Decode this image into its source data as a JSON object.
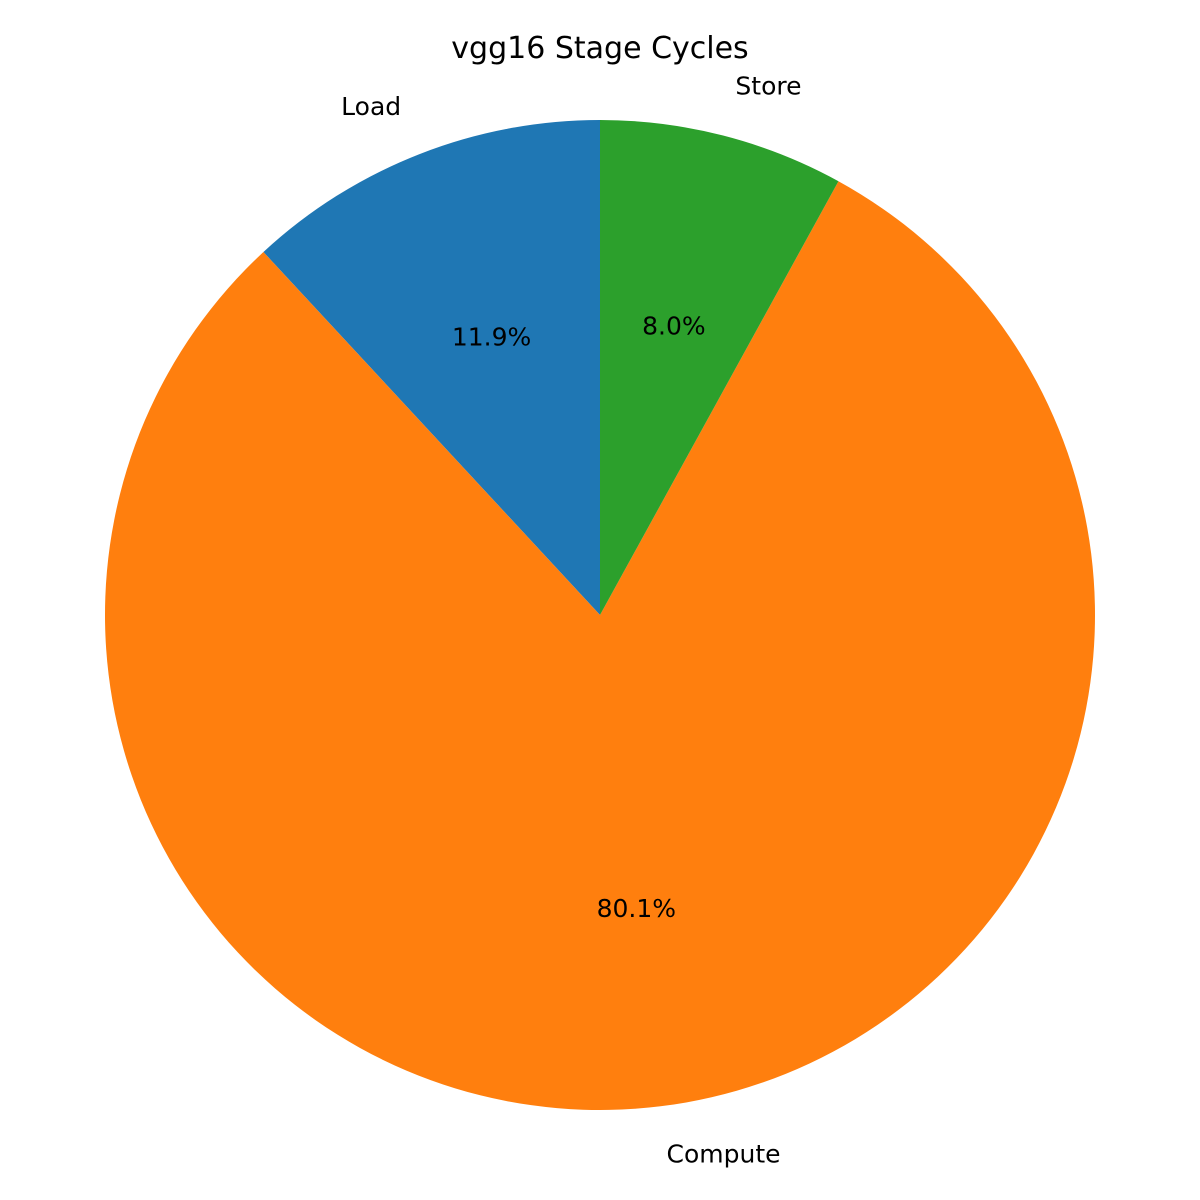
{
  "chart_data": {
    "type": "pie",
    "title": "vgg16 Stage Cycles",
    "start_angle_deg": 90,
    "direction": "counterclockwise",
    "slices": [
      {
        "label": "Load",
        "value": 11.9,
        "pct_label": "11.9%",
        "color": "#1f77b4"
      },
      {
        "label": "Compute",
        "value": 80.1,
        "pct_label": "80.1%",
        "color": "#ff7f0e"
      },
      {
        "label": "Store",
        "value": 8.0,
        "pct_label": "8.0%",
        "color": "#2ca02c"
      }
    ]
  }
}
